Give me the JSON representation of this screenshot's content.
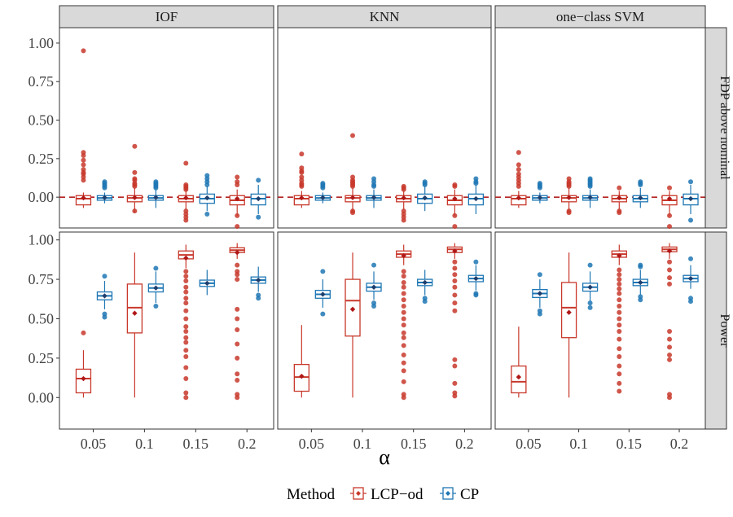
{
  "colors": {
    "LCP-od": "#c8382b",
    "CP": "#1f77b4",
    "nominal_line": "#b22222",
    "strip_fill": "#d9d9d9"
  },
  "chart_data": {
    "type": "box",
    "x": {
      "label": "α",
      "categories": [
        "0.05",
        "0.1",
        "0.15",
        "0.2"
      ]
    },
    "facet_columns": [
      "IOF",
      "KNN",
      "one−class SVM"
    ],
    "facet_rows": [
      {
        "name": "FDP above nominal",
        "ylim": [
          -0.2,
          1.1
        ],
        "ticks": [
          0,
          0.25,
          0.5,
          0.75,
          1
        ],
        "tick_labels": [
          "0.00",
          "0.25",
          "0.50",
          "0.75",
          "1.00"
        ],
        "reference_line": 0
      },
      {
        "name": "Power",
        "ylim": [
          -0.2,
          1.05
        ],
        "ticks": [
          0,
          0.25,
          0.5,
          0.75,
          1
        ],
        "tick_labels": [
          "0.00",
          "0.25",
          "0.50",
          "0.75",
          "1.00"
        ]
      }
    ],
    "legend": {
      "title": "Method",
      "entries": [
        "LCP−od",
        "CP"
      ],
      "position": "bottom"
    },
    "grid": false,
    "boxes": [
      {
        "row": 0,
        "col": 0,
        "method": "LCP-od",
        "x": "0.05",
        "q1": -0.05,
        "median": -0.01,
        "q3": 0.01,
        "wmin": -0.07,
        "wmax": 0.03,
        "mean": -0.005,
        "outliers": [
          0.95,
          0.29,
          0.27,
          0.24,
          0.21,
          0.18,
          0.16,
          0.15,
          0.13,
          0.11
        ]
      },
      {
        "row": 0,
        "col": 0,
        "method": "CP",
        "x": "0.05",
        "q1": -0.02,
        "median": -0.005,
        "q3": 0.01,
        "wmin": -0.04,
        "wmax": 0.03,
        "mean": -0.003,
        "outliers": [
          0.1,
          0.09,
          0.08,
          0.07,
          0.06
        ]
      },
      {
        "row": 0,
        "col": 0,
        "method": "LCP-od",
        "x": "0.1",
        "q1": -0.03,
        "median": -0.005,
        "q3": 0.01,
        "wmin": -0.1,
        "wmax": 0.06,
        "mean": -0.003,
        "outliers": [
          0.33,
          0.16,
          0.12,
          0.11,
          0.09,
          0.08,
          0.07,
          -0.09
        ]
      },
      {
        "row": 0,
        "col": 0,
        "method": "CP",
        "x": "0.1",
        "q1": -0.02,
        "median": -0.005,
        "q3": 0.01,
        "wmin": -0.07,
        "wmax": 0.05,
        "mean": -0.002,
        "outliers": [
          0.1,
          0.09,
          0.08,
          0.07,
          0.06
        ]
      },
      {
        "row": 0,
        "col": 0,
        "method": "LCP-od",
        "x": "0.15",
        "q1": -0.03,
        "median": -0.01,
        "q3": 0.01,
        "wmin": -0.08,
        "wmax": 0.05,
        "mean": -0.005,
        "outliers": [
          0.22,
          0.08,
          0.07,
          0.06,
          0.05,
          -0.09,
          -0.11,
          -0.13,
          -0.15
        ]
      },
      {
        "row": 0,
        "col": 0,
        "method": "CP",
        "x": "0.15",
        "q1": -0.04,
        "median": -0.01,
        "q3": 0.02,
        "wmin": -0.09,
        "wmax": 0.07,
        "mean": -0.005,
        "outliers": [
          0.14,
          0.12,
          0.1,
          0.08,
          -0.11
        ]
      },
      {
        "row": 0,
        "col": 0,
        "method": "LCP-od",
        "x": "0.2",
        "q1": -0.05,
        "median": -0.02,
        "q3": 0.01,
        "wmin": -0.12,
        "wmax": 0.05,
        "mean": -0.01,
        "outliers": [
          0.13,
          0.1,
          0.08,
          -0.12,
          -0.19
        ]
      },
      {
        "row": 0,
        "col": 0,
        "method": "CP",
        "x": "0.2",
        "q1": -0.05,
        "median": -0.01,
        "q3": 0.02,
        "wmin": -0.11,
        "wmax": 0.08,
        "mean": -0.01,
        "outliers": [
          0.11,
          -0.13
        ]
      },
      {
        "row": 0,
        "col": 1,
        "method": "LCP-od",
        "x": "0.05",
        "q1": -0.05,
        "median": -0.01,
        "q3": 0.01,
        "wmin": -0.07,
        "wmax": 0.04,
        "mean": -0.005,
        "outliers": [
          0.28,
          0.19,
          0.17,
          0.16,
          0.13,
          0.11,
          0.09,
          0.08,
          0.07
        ]
      },
      {
        "row": 0,
        "col": 1,
        "method": "CP",
        "x": "0.05",
        "q1": -0.02,
        "median": -0.005,
        "q3": 0.01,
        "wmin": -0.04,
        "wmax": 0.03,
        "mean": -0.003,
        "outliers": [
          0.09,
          0.08,
          0.07,
          0.06
        ]
      },
      {
        "row": 0,
        "col": 1,
        "method": "LCP-od",
        "x": "0.1",
        "q1": -0.03,
        "median": -0.005,
        "q3": 0.01,
        "wmin": -0.1,
        "wmax": 0.06,
        "mean": -0.003,
        "outliers": [
          0.4,
          0.13,
          0.11,
          0.1,
          0.09,
          0.08,
          0.07,
          -0.09,
          -0.1
        ]
      },
      {
        "row": 0,
        "col": 1,
        "method": "CP",
        "x": "0.1",
        "q1": -0.02,
        "median": -0.005,
        "q3": 0.01,
        "wmin": -0.07,
        "wmax": 0.05,
        "mean": -0.002,
        "outliers": [
          0.12,
          0.1,
          0.08,
          0.07
        ]
      },
      {
        "row": 0,
        "col": 1,
        "method": "LCP-od",
        "x": "0.15",
        "q1": -0.03,
        "median": -0.01,
        "q3": 0.01,
        "wmin": -0.08,
        "wmax": 0.04,
        "mean": -0.005,
        "outliers": [
          0.07,
          0.06,
          0.05,
          -0.09,
          -0.11,
          -0.13,
          -0.15
        ]
      },
      {
        "row": 0,
        "col": 1,
        "method": "CP",
        "x": "0.15",
        "q1": -0.04,
        "median": -0.01,
        "q3": 0.02,
        "wmin": -0.09,
        "wmax": 0.07,
        "mean": -0.005,
        "outliers": [
          0.1,
          0.09,
          0.08
        ]
      },
      {
        "row": 0,
        "col": 1,
        "method": "LCP-od",
        "x": "0.2",
        "q1": -0.05,
        "median": -0.02,
        "q3": 0.01,
        "wmin": -0.12,
        "wmax": 0.05,
        "mean": -0.01,
        "outliers": [
          0.08,
          0.07,
          -0.12,
          -0.19
        ]
      },
      {
        "row": 0,
        "col": 1,
        "method": "CP",
        "x": "0.2",
        "q1": -0.05,
        "median": -0.01,
        "q3": 0.02,
        "wmin": -0.11,
        "wmax": 0.08,
        "mean": -0.01,
        "outliers": [
          0.12,
          0.1,
          0.09
        ]
      },
      {
        "row": 0,
        "col": 2,
        "method": "LCP-od",
        "x": "0.05",
        "q1": -0.05,
        "median": -0.01,
        "q3": 0.01,
        "wmin": -0.07,
        "wmax": 0.04,
        "mean": -0.005,
        "outliers": [
          0.29,
          0.21,
          0.18,
          0.15,
          0.13,
          0.11,
          0.09,
          0.07
        ]
      },
      {
        "row": 0,
        "col": 2,
        "method": "CP",
        "x": "0.05",
        "q1": -0.02,
        "median": -0.005,
        "q3": 0.01,
        "wmin": -0.04,
        "wmax": 0.03,
        "mean": -0.003,
        "outliers": [
          0.09,
          0.08,
          0.07,
          0.06
        ]
      },
      {
        "row": 0,
        "col": 2,
        "method": "LCP-od",
        "x": "0.1",
        "q1": -0.03,
        "median": -0.005,
        "q3": 0.01,
        "wmin": -0.09,
        "wmax": 0.06,
        "mean": -0.003,
        "outliers": [
          0.12,
          0.1,
          0.09,
          0.08,
          0.07,
          -0.09,
          -0.1
        ]
      },
      {
        "row": 0,
        "col": 2,
        "method": "CP",
        "x": "0.1",
        "q1": -0.02,
        "median": -0.005,
        "q3": 0.01,
        "wmin": -0.07,
        "wmax": 0.05,
        "mean": -0.002,
        "outliers": [
          0.12,
          0.11,
          0.1,
          0.09,
          0.08,
          0.07
        ]
      },
      {
        "row": 0,
        "col": 2,
        "method": "LCP-od",
        "x": "0.15",
        "q1": -0.03,
        "median": -0.01,
        "q3": 0.01,
        "wmin": -0.08,
        "wmax": 0.04,
        "mean": -0.005,
        "outliers": [
          0.06,
          -0.09,
          -0.1
        ]
      },
      {
        "row": 0,
        "col": 2,
        "method": "CP",
        "x": "0.15",
        "q1": -0.03,
        "median": -0.01,
        "q3": 0.01,
        "wmin": -0.07,
        "wmax": 0.06,
        "mean": -0.005,
        "outliers": [
          0.1,
          0.09,
          0.08
        ]
      },
      {
        "row": 0,
        "col": 2,
        "method": "LCP-od",
        "x": "0.2",
        "q1": -0.05,
        "median": -0.02,
        "q3": 0.01,
        "wmin": -0.12,
        "wmax": 0.04,
        "mean": -0.01,
        "outliers": [
          0.06,
          -0.12,
          -0.19
        ]
      },
      {
        "row": 0,
        "col": 2,
        "method": "CP",
        "x": "0.2",
        "q1": -0.05,
        "median": -0.01,
        "q3": 0.02,
        "wmin": -0.11,
        "wmax": 0.08,
        "mean": -0.01,
        "outliers": [
          0.1,
          -0.15
        ]
      },
      {
        "row": 1,
        "col": 0,
        "method": "LCP-od",
        "x": "0.05",
        "q1": 0.03,
        "median": 0.12,
        "q3": 0.18,
        "wmin": 0.0,
        "wmax": 0.3,
        "mean": 0.12,
        "outliers": [
          0.41
        ]
      },
      {
        "row": 1,
        "col": 0,
        "method": "CP",
        "x": "0.05",
        "q1": 0.62,
        "median": 0.645,
        "q3": 0.67,
        "wmin": 0.56,
        "wmax": 0.74,
        "mean": 0.645,
        "outliers": [
          0.77,
          0.53,
          0.51
        ]
      },
      {
        "row": 1,
        "col": 0,
        "method": "LCP-od",
        "x": "0.1",
        "q1": 0.41,
        "median": 0.57,
        "q3": 0.72,
        "wmin": 0.0,
        "wmax": 0.92,
        "mean": 0.535,
        "outliers": []
      },
      {
        "row": 1,
        "col": 0,
        "method": "CP",
        "x": "0.1",
        "q1": 0.67,
        "median": 0.695,
        "q3": 0.72,
        "wmin": 0.6,
        "wmax": 0.8,
        "mean": 0.695,
        "outliers": [
          0.82,
          0.58
        ]
      },
      {
        "row": 1,
        "col": 0,
        "method": "LCP-od",
        "x": "0.15",
        "q1": 0.88,
        "median": 0.905,
        "q3": 0.93,
        "wmin": 0.82,
        "wmax": 0.97,
        "mean": 0.885,
        "outliers": [
          0.8,
          0.77,
          0.74,
          0.7,
          0.67,
          0.63,
          0.6,
          0.55,
          0.5,
          0.45,
          0.42,
          0.38,
          0.35,
          0.3,
          0.26,
          0.19,
          0.12,
          0.03,
          0.0
        ]
      },
      {
        "row": 1,
        "col": 0,
        "method": "CP",
        "x": "0.15",
        "q1": 0.705,
        "median": 0.725,
        "q3": 0.745,
        "wmin": 0.65,
        "wmax": 0.81,
        "mean": 0.725,
        "outliers": []
      },
      {
        "row": 1,
        "col": 0,
        "method": "LCP-od",
        "x": "0.2",
        "q1": 0.92,
        "median": 0.935,
        "q3": 0.95,
        "wmin": 0.88,
        "wmax": 0.98,
        "mean": 0.92,
        "outliers": [
          0.84,
          0.8,
          0.78,
          0.75,
          0.56,
          0.5,
          0.43,
          0.34,
          0.25,
          0.15,
          0.11,
          0.02,
          0.0
        ]
      },
      {
        "row": 1,
        "col": 0,
        "method": "CP",
        "x": "0.2",
        "q1": 0.725,
        "median": 0.745,
        "q3": 0.765,
        "wmin": 0.67,
        "wmax": 0.83,
        "mean": 0.745,
        "outliers": [
          0.65,
          0.63
        ]
      },
      {
        "row": 1,
        "col": 1,
        "method": "LCP-od",
        "x": "0.05",
        "q1": 0.04,
        "median": 0.13,
        "q3": 0.21,
        "wmin": 0.0,
        "wmax": 0.46,
        "mean": 0.135,
        "outliers": []
      },
      {
        "row": 1,
        "col": 1,
        "method": "CP",
        "x": "0.05",
        "q1": 0.63,
        "median": 0.655,
        "q3": 0.68,
        "wmin": 0.57,
        "wmax": 0.75,
        "mean": 0.655,
        "outliers": [
          0.8,
          0.53
        ]
      },
      {
        "row": 1,
        "col": 1,
        "method": "LCP-od",
        "x": "0.1",
        "q1": 0.39,
        "median": 0.615,
        "q3": 0.75,
        "wmin": 0.0,
        "wmax": 0.92,
        "mean": 0.56,
        "outliers": []
      },
      {
        "row": 1,
        "col": 1,
        "method": "CP",
        "x": "0.1",
        "q1": 0.675,
        "median": 0.7,
        "q3": 0.725,
        "wmin": 0.62,
        "wmax": 0.8,
        "mean": 0.7,
        "outliers": [
          0.84,
          0.6,
          0.58
        ]
      },
      {
        "row": 1,
        "col": 1,
        "method": "LCP-od",
        "x": "0.15",
        "q1": 0.89,
        "median": 0.91,
        "q3": 0.93,
        "wmin": 0.84,
        "wmax": 0.97,
        "mean": 0.9,
        "outliers": [
          0.8,
          0.77,
          0.73,
          0.7,
          0.66,
          0.62,
          0.58,
          0.54,
          0.5,
          0.46,
          0.41,
          0.38,
          0.33,
          0.27,
          0.22,
          0.17,
          0.1,
          0.02,
          0.0
        ]
      },
      {
        "row": 1,
        "col": 1,
        "method": "CP",
        "x": "0.15",
        "q1": 0.71,
        "median": 0.73,
        "q3": 0.75,
        "wmin": 0.65,
        "wmax": 0.81,
        "mean": 0.73,
        "outliers": [
          0.63,
          0.61
        ]
      },
      {
        "row": 1,
        "col": 1,
        "method": "LCP-od",
        "x": "0.2",
        "q1": 0.92,
        "median": 0.94,
        "q3": 0.955,
        "wmin": 0.88,
        "wmax": 0.98,
        "mean": 0.93,
        "outliers": [
          0.86,
          0.82,
          0.78,
          0.74,
          0.7,
          0.65,
          0.6,
          0.55,
          0.24,
          0.2,
          0.09,
          0.03,
          0.01
        ]
      },
      {
        "row": 1,
        "col": 1,
        "method": "CP",
        "x": "0.2",
        "q1": 0.735,
        "median": 0.755,
        "q3": 0.775,
        "wmin": 0.68,
        "wmax": 0.84,
        "mean": 0.755,
        "outliers": [
          0.86,
          0.66,
          0.65
        ]
      },
      {
        "row": 1,
        "col": 2,
        "method": "LCP-od",
        "x": "0.05",
        "q1": 0.03,
        "median": 0.1,
        "q3": 0.2,
        "wmin": 0.0,
        "wmax": 0.45,
        "mean": 0.13,
        "outliers": []
      },
      {
        "row": 1,
        "col": 2,
        "method": "CP",
        "x": "0.05",
        "q1": 0.635,
        "median": 0.66,
        "q3": 0.685,
        "wmin": 0.57,
        "wmax": 0.75,
        "mean": 0.66,
        "outliers": [
          0.78,
          0.55,
          0.53
        ]
      },
      {
        "row": 1,
        "col": 2,
        "method": "LCP-od",
        "x": "0.1",
        "q1": 0.38,
        "median": 0.57,
        "q3": 0.73,
        "wmin": 0.0,
        "wmax": 0.92,
        "mean": 0.54,
        "outliers": []
      },
      {
        "row": 1,
        "col": 2,
        "method": "CP",
        "x": "0.1",
        "q1": 0.675,
        "median": 0.7,
        "q3": 0.725,
        "wmin": 0.61,
        "wmax": 0.8,
        "mean": 0.7,
        "outliers": [
          0.84,
          0.6,
          0.57
        ]
      },
      {
        "row": 1,
        "col": 2,
        "method": "LCP-od",
        "x": "0.15",
        "q1": 0.89,
        "median": 0.91,
        "q3": 0.93,
        "wmin": 0.84,
        "wmax": 0.97,
        "mean": 0.9,
        "outliers": [
          0.81,
          0.78,
          0.75,
          0.72,
          0.69,
          0.66,
          0.62,
          0.58,
          0.54,
          0.5,
          0.46,
          0.42,
          0.37,
          0.31,
          0.26,
          0.2,
          0.15,
          0.09,
          0.04
        ]
      },
      {
        "row": 1,
        "col": 2,
        "method": "CP",
        "x": "0.15",
        "q1": 0.71,
        "median": 0.73,
        "q3": 0.75,
        "wmin": 0.65,
        "wmax": 0.81,
        "mean": 0.73,
        "outliers": [
          0.84,
          0.83,
          0.64,
          0.62
        ]
      },
      {
        "row": 1,
        "col": 2,
        "method": "LCP-od",
        "x": "0.2",
        "q1": 0.925,
        "median": 0.94,
        "q3": 0.955,
        "wmin": 0.88,
        "wmax": 0.98,
        "mean": 0.93,
        "outliers": [
          0.86,
          0.81,
          0.76,
          0.72,
          0.42,
          0.37,
          0.32,
          0.27,
          0.24,
          0.02,
          0.0
        ]
      },
      {
        "row": 1,
        "col": 2,
        "method": "CP",
        "x": "0.2",
        "q1": 0.735,
        "median": 0.755,
        "q3": 0.775,
        "wmin": 0.69,
        "wmax": 0.84,
        "mean": 0.755,
        "outliers": [
          0.88,
          0.63,
          0.61
        ]
      }
    ]
  }
}
